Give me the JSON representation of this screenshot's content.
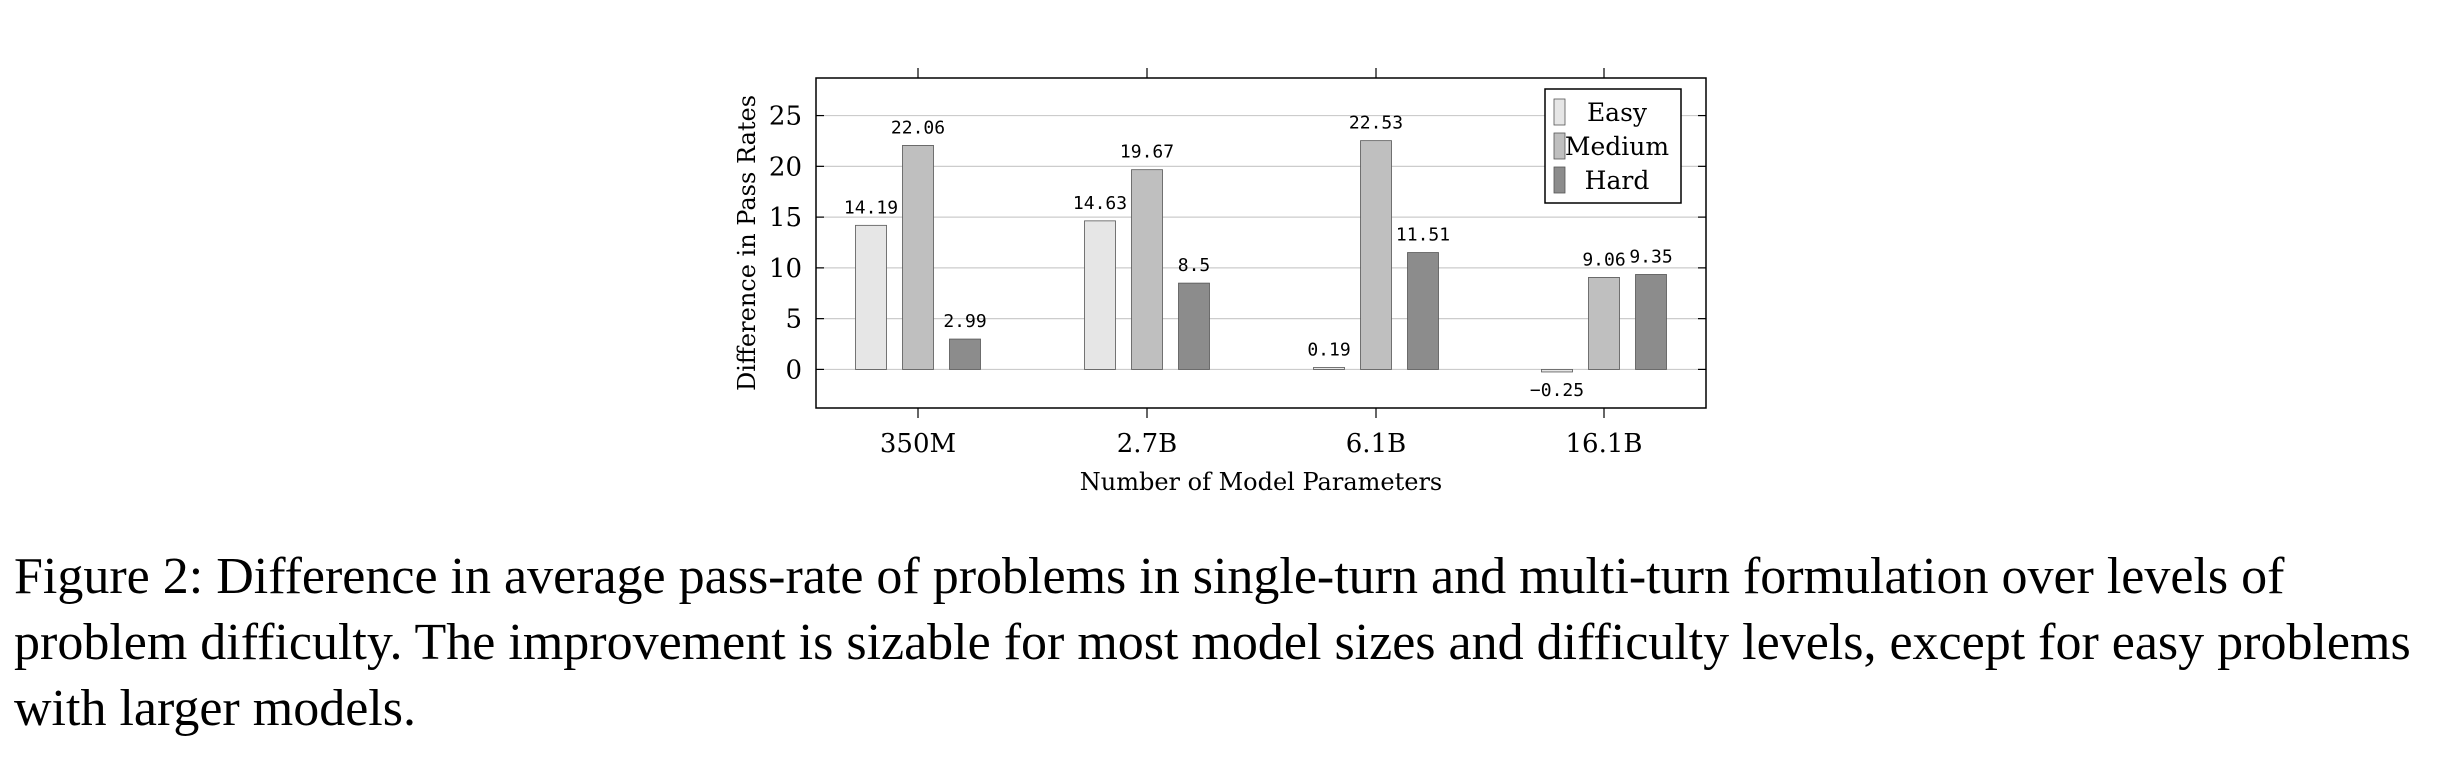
{
  "chart_data": {
    "type": "bar",
    "categories": [
      "350M",
      "2.7B",
      "6.1B",
      "16.1B"
    ],
    "series": [
      {
        "name": "Easy",
        "color": "#e6e6e6",
        "values": [
          14.19,
          14.63,
          0.19,
          -0.25
        ],
        "labels": [
          "14.19",
          "14.63",
          "0.19",
          "−0.25"
        ]
      },
      {
        "name": "Medium",
        "color": "#bfbfbf",
        "values": [
          22.06,
          19.67,
          22.53,
          9.06
        ],
        "labels": [
          "22.06",
          "19.67",
          "22.53",
          "9.06"
        ]
      },
      {
        "name": "Hard",
        "color": "#8c8c8c",
        "values": [
          2.99,
          8.5,
          11.51,
          9.35
        ],
        "labels": [
          "2.99",
          "8.5",
          "11.51",
          "9.35"
        ]
      }
    ],
    "xlabel": "Number of Model Parameters",
    "ylabel": "Difference in Pass Rates",
    "yticks": [
      0,
      5,
      10,
      15,
      20,
      25
    ],
    "ylim": [
      -3.8,
      28.7
    ],
    "grid": true,
    "legend_position": "top-right"
  },
  "caption": "Figure 2: Difference in average pass-rate of problems in single-turn and multi-turn formulation over levels of problem difficulty. The improvement is sizable for most model sizes and difficulty levels, except for easy problems with larger models."
}
